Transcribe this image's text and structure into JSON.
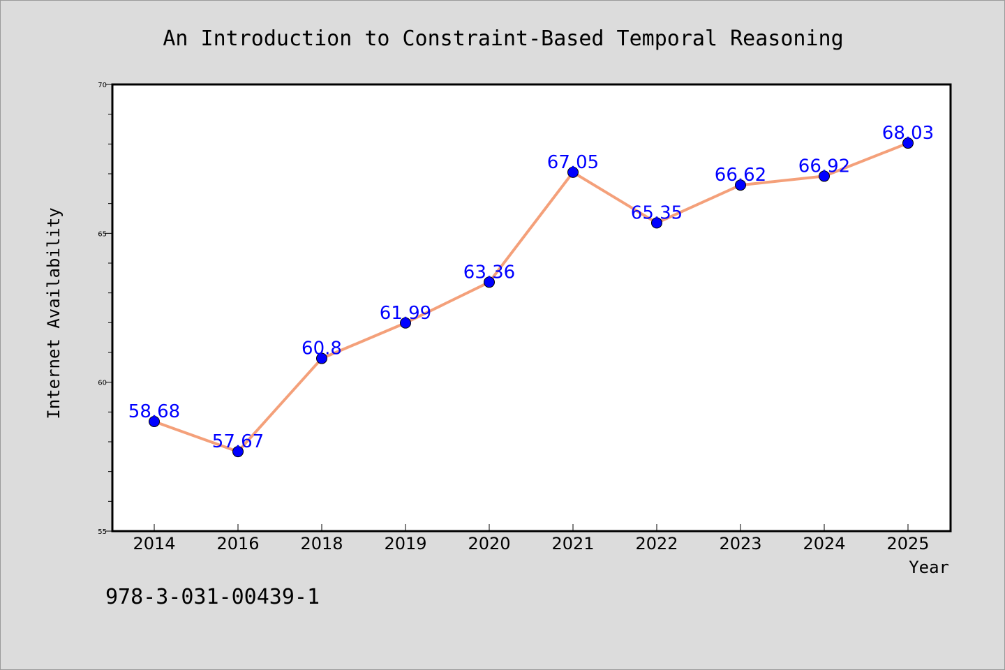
{
  "chart_data": {
    "type": "line",
    "title": "An Introduction to Constraint-Based Temporal Reasoning",
    "xlabel": "Year",
    "ylabel": "Internet Availability",
    "categories": [
      "2014",
      "2016",
      "2018",
      "2019",
      "2020",
      "2021",
      "2022",
      "2023",
      "2024",
      "2025"
    ],
    "series": [
      {
        "values": [
          58.68,
          57.67,
          60.8,
          61.99,
          63.36,
          67.05,
          65.35,
          66.62,
          66.92,
          68.03
        ],
        "labels": [
          "58.68",
          "57.67",
          "60.8",
          "61.99",
          "63.36",
          "67.05",
          "65.35",
          "66.62",
          "66.92",
          "68.03"
        ],
        "line_color": "#f4a07a",
        "marker_color": "#0000ff"
      }
    ],
    "ylim": [
      55,
      70
    ],
    "y_ticks": [
      "55",
      "60",
      "65",
      "70"
    ],
    "grid": false,
    "label_color": "#0000ff"
  },
  "footer_text": "978-3-031-00439-1",
  "colors": {
    "background": "#dcdcdc",
    "plot_background": "#ffffff"
  }
}
